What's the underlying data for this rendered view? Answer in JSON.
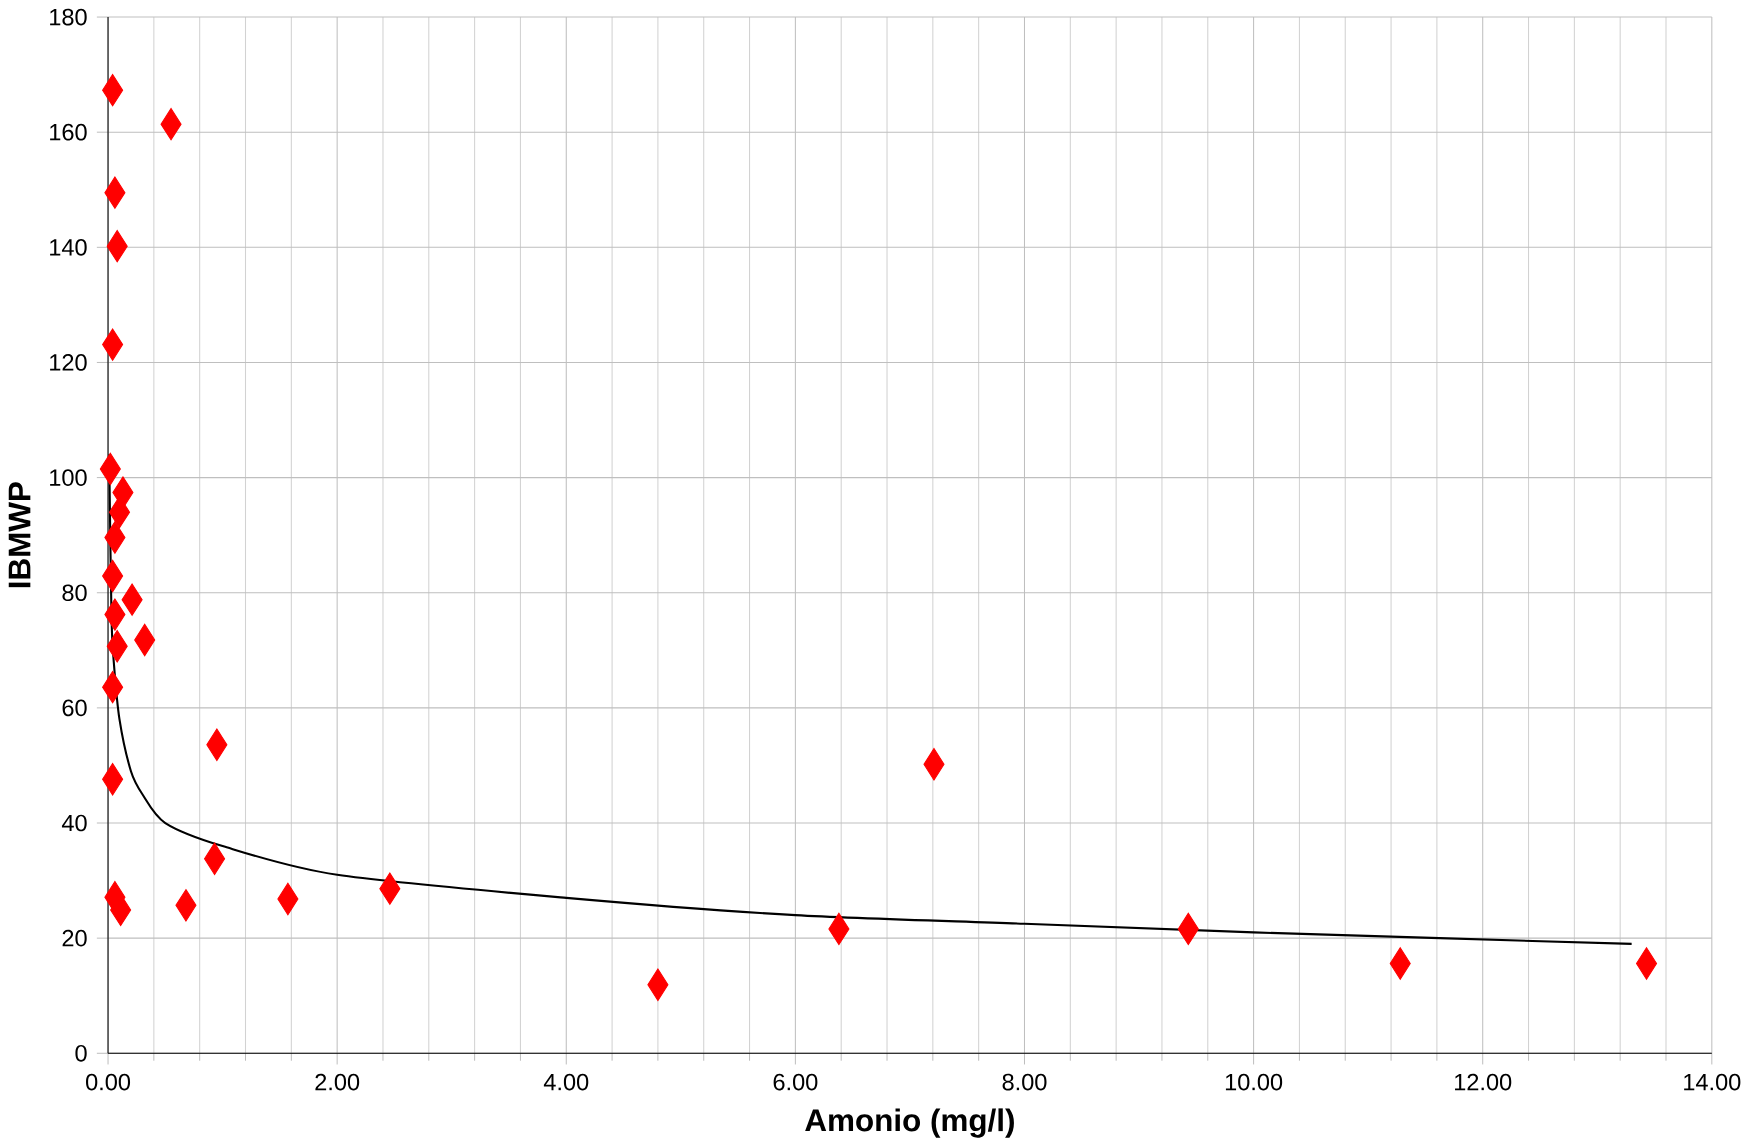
{
  "chart_data": {
    "type": "scatter",
    "xlabel": "Amonio (mg/l)",
    "ylabel": "IBMWP",
    "xlim": [
      0,
      14
    ],
    "ylim": [
      0,
      180
    ],
    "xticks": [
      {
        "value": 0,
        "label": "0.00"
      },
      {
        "value": 2,
        "label": "2.00"
      },
      {
        "value": 4,
        "label": "4.00"
      },
      {
        "value": 6,
        "label": "6.00"
      },
      {
        "value": 8,
        "label": "8.00"
      },
      {
        "value": 10,
        "label": "10.00"
      },
      {
        "value": 12,
        "label": "12.00"
      },
      {
        "value": 14,
        "label": "14.00"
      }
    ],
    "yticks": [
      0,
      20,
      40,
      60,
      80,
      100,
      120,
      140,
      160,
      180
    ],
    "grid": true,
    "series": [
      {
        "marker": "diamond",
        "color": "#ff0000",
        "x": [
          0.04,
          0.55,
          0.06,
          0.08,
          0.04,
          0.02,
          0.13,
          0.1,
          0.06,
          0.04,
          0.21,
          0.06,
          0.32,
          0.08,
          0.04,
          0.95,
          0.04,
          7.21,
          0.93,
          0.06,
          0.11,
          0.68,
          1.57,
          2.46,
          4.8,
          6.38,
          9.43,
          11.28,
          13.43
        ],
        "values": [
          167.3,
          161.4,
          149.5,
          140.2,
          123.1,
          101.5,
          97.4,
          94,
          89.6,
          82.9,
          78.8,
          76.2,
          71.8,
          70.7,
          63.6,
          53.6,
          47.6,
          50.2,
          33.8,
          27.1,
          24.9,
          25.7,
          26.8,
          28.6,
          11.9,
          21.6,
          21.6,
          15.6,
          15.6
        ]
      },
      {
        "type": "line",
        "marker": "none",
        "color": "#000000",
        "x": [
          0.01,
          0.03,
          0.05,
          0.1,
          0.2,
          0.3,
          0.5,
          1,
          2,
          4,
          6,
          8,
          10,
          13.3
        ],
        "values": [
          104,
          76,
          68,
          58,
          49,
          45,
          40,
          36,
          31,
          27,
          24,
          22.5,
          21,
          19
        ]
      }
    ]
  }
}
